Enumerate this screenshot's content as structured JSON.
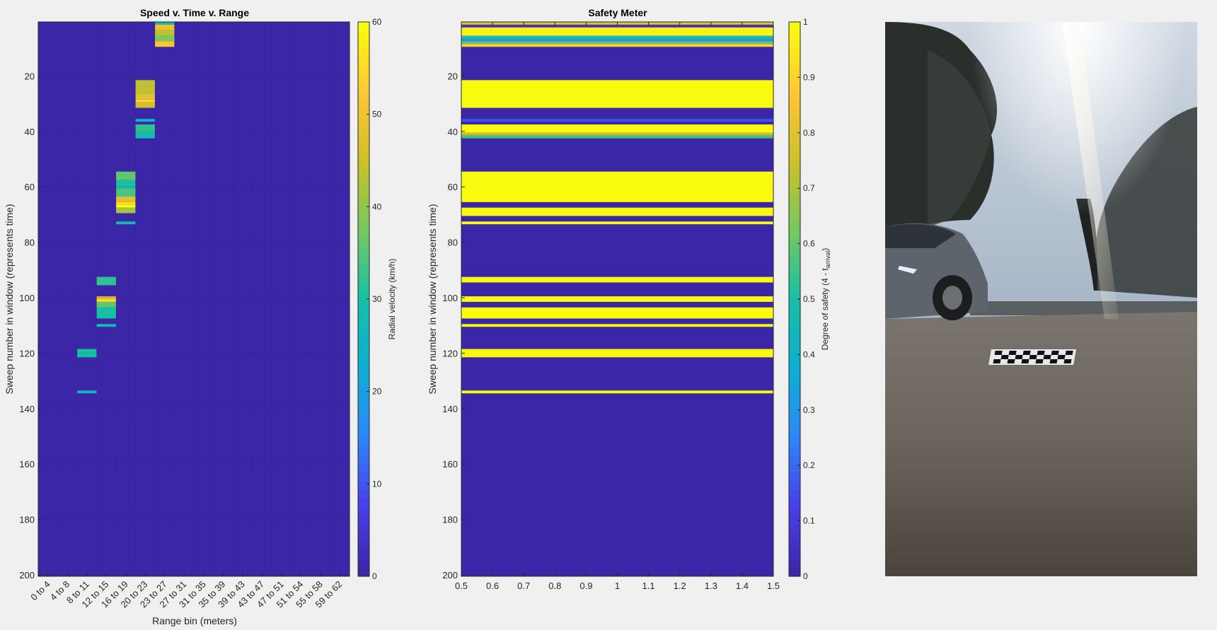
{
  "figure": {
    "background": "#f0f0f0"
  },
  "chart_data": [
    {
      "type": "heatmap",
      "title": "Speed v. Time v. Range",
      "xlabel": "Range bin (meters)",
      "ylabel": "Sweep number in window (represents time)",
      "categories": [
        "0 to 4",
        "4 to 8",
        "8 to 11",
        "12 to 15",
        "16 to 19",
        "20 to 23",
        "23 to 27",
        "27 to 31",
        "31 to 35",
        "35 to 39",
        "39 to 43",
        "43 to 47",
        "47 to 51",
        "51 to 54",
        "55 to 58",
        "59 to 62"
      ],
      "y_ticks": [
        20,
        40,
        60,
        80,
        100,
        120,
        140,
        160,
        180,
        200
      ],
      "ylim": [
        0.5,
        200.5
      ],
      "y_reversed": true,
      "grid": true,
      "colorbar": {
        "label": "Radial velocity (km/h)",
        "ticks": [
          0,
          10,
          20,
          30,
          40,
          50,
          60
        ],
        "range": [
          0,
          60
        ]
      },
      "background_value": 0,
      "cells": [
        {
          "col": 7,
          "rows": [
            1,
            1
          ],
          "value": 28
        },
        {
          "col": 7,
          "rows": [
            2,
            3
          ],
          "value": 50
        },
        {
          "col": 7,
          "rows": [
            4,
            5
          ],
          "value": 44
        },
        {
          "col": 7,
          "rows": [
            6,
            7
          ],
          "value": 38
        },
        {
          "col": 7,
          "rows": [
            8,
            9
          ],
          "value": 52
        },
        {
          "col": 6,
          "rows": [
            22,
            26
          ],
          "value": 44
        },
        {
          "col": 6,
          "rows": [
            27,
            28
          ],
          "value": 48
        },
        {
          "col": 6,
          "rows": [
            29,
            29
          ],
          "value": 55
        },
        {
          "col": 6,
          "rows": [
            30,
            31
          ],
          "value": 46
        },
        {
          "col": 6,
          "rows": [
            36,
            36
          ],
          "value": 25
        },
        {
          "col": 6,
          "rows": [
            38,
            40
          ],
          "value": 32
        },
        {
          "col": 6,
          "rows": [
            41,
            42
          ],
          "value": 28
        },
        {
          "col": 5,
          "rows": [
            55,
            57
          ],
          "value": 36
        },
        {
          "col": 5,
          "rows": [
            58,
            60
          ],
          "value": 30
        },
        {
          "col": 5,
          "rows": [
            61,
            63
          ],
          "value": 34
        },
        {
          "col": 5,
          "rows": [
            64,
            65
          ],
          "value": 48
        },
        {
          "col": 5,
          "rows": [
            66,
            66
          ],
          "value": 56
        },
        {
          "col": 5,
          "rows": [
            67,
            67
          ],
          "value": 60
        },
        {
          "col": 5,
          "rows": [
            68,
            69
          ],
          "value": 42
        },
        {
          "col": 5,
          "rows": [
            73,
            73
          ],
          "value": 28
        },
        {
          "col": 4,
          "rows": [
            93,
            95
          ],
          "value": 32
        },
        {
          "col": 4,
          "rows": [
            100,
            100
          ],
          "value": 48
        },
        {
          "col": 4,
          "rows": [
            101,
            101
          ],
          "value": 55
        },
        {
          "col": 4,
          "rows": [
            102,
            103
          ],
          "value": 36
        },
        {
          "col": 4,
          "rows": [
            104,
            107
          ],
          "value": 30
        },
        {
          "col": 4,
          "rows": [
            110,
            110
          ],
          "value": 28
        },
        {
          "col": 3,
          "rows": [
            119,
            121
          ],
          "value": 30
        },
        {
          "col": 3,
          "rows": [
            134,
            134
          ],
          "value": 25
        }
      ]
    },
    {
      "type": "heatmap",
      "title": "Safety Meter",
      "xlabel": "",
      "ylabel": "Sweep number in window  (represents time)",
      "x_ticks": [
        "0.5",
        "0.6",
        "0.7",
        "0.8",
        "0.9",
        "1",
        "1.1",
        "1.2",
        "1.3",
        "1.4",
        "1.5"
      ],
      "xlim": [
        0.5,
        1.5
      ],
      "y_ticks": [
        20,
        40,
        60,
        80,
        100,
        120,
        140,
        160,
        180,
        200
      ],
      "ylim": [
        0.5,
        200.5
      ],
      "y_reversed": true,
      "colorbar": {
        "label": "Degree of safety (4 - t",
        "label_sub": "arrival",
        "label_suffix": ")",
        "ticks": [
          "0",
          "0.1",
          "0.2",
          "0.3",
          "0.4",
          "0.5",
          "0.6",
          "0.7",
          "0.8",
          "0.9",
          "1"
        ],
        "range": [
          0,
          1
        ]
      },
      "background_value": 0,
      "bands": [
        {
          "rows": [
            1,
            1
          ],
          "value": 0.8
        },
        {
          "rows": [
            2,
            2
          ],
          "value": 0.05
        },
        {
          "rows": [
            3,
            5
          ],
          "value": 0.98
        },
        {
          "rows": [
            6,
            6
          ],
          "value": 0.5
        },
        {
          "rows": [
            7,
            7
          ],
          "value": 0.3
        },
        {
          "rows": [
            8,
            8
          ],
          "value": 0.6
        },
        {
          "rows": [
            9,
            9
          ],
          "value": 0.9
        },
        {
          "rows": [
            22,
            31
          ],
          "value": 1
        },
        {
          "rows": [
            36,
            36
          ],
          "value": 0.15
        },
        {
          "rows": [
            38,
            40
          ],
          "value": 1
        },
        {
          "rows": [
            41,
            41
          ],
          "value": 0.75
        },
        {
          "rows": [
            42,
            42
          ],
          "value": 0.55
        },
        {
          "rows": [
            55,
            65
          ],
          "value": 1
        },
        {
          "rows": [
            68,
            70
          ],
          "value": 1
        },
        {
          "rows": [
            73,
            73
          ],
          "value": 1
        },
        {
          "rows": [
            93,
            94
          ],
          "value": 1
        },
        {
          "rows": [
            100,
            101
          ],
          "value": 1
        },
        {
          "rows": [
            104,
            107
          ],
          "value": 1
        },
        {
          "rows": [
            110,
            110
          ],
          "value": 1
        },
        {
          "rows": [
            119,
            121
          ],
          "value": 1
        },
        {
          "rows": [
            134,
            134
          ],
          "value": 1
        }
      ]
    }
  ],
  "photo": {
    "subject": "street-scene-photo"
  }
}
